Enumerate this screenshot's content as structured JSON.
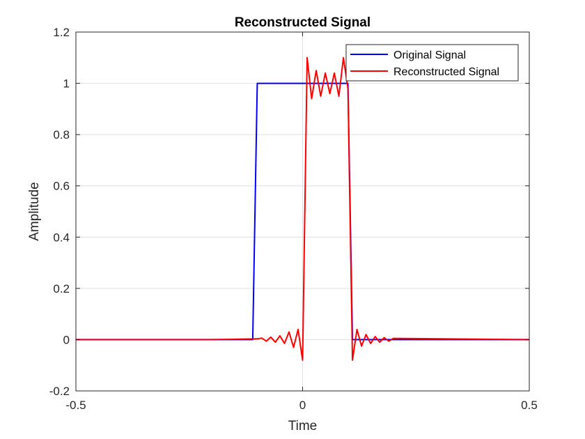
{
  "chart_data": {
    "type": "line",
    "title": "Reconstructed Signal",
    "xlabel": "Time",
    "ylabel": "Amplitude",
    "xlim": [
      -0.5,
      0.5
    ],
    "ylim": [
      -0.2,
      1.2
    ],
    "xticks": [
      -0.5,
      0,
      0.5
    ],
    "xtick_labels": [
      "-0.5",
      "0",
      "0.5"
    ],
    "yticks": [
      -0.2,
      0,
      0.2,
      0.4,
      0.6,
      0.8,
      1,
      1.2
    ],
    "ytick_labels": [
      "-0.2",
      "0",
      "0.2",
      "0.4",
      "0.6",
      "0.8",
      "1",
      "1.2"
    ],
    "grid": true,
    "legend_position": "top-right",
    "series": [
      {
        "name": "Original Signal",
        "color": "#0000ff",
        "x": [
          -0.5,
          -0.2,
          -0.11,
          -0.1,
          0.1,
          0.11,
          0.2,
          0.5
        ],
        "y": [
          0,
          0,
          0,
          1,
          1,
          0,
          0,
          0
        ]
      },
      {
        "name": "Reconstructed Signal",
        "color": "#ff0000",
        "x": [
          -0.5,
          -0.2,
          -0.1,
          -0.09,
          -0.08,
          -0.07,
          -0.06,
          -0.05,
          -0.04,
          -0.03,
          -0.02,
          -0.01,
          0.0,
          0.01,
          0.02,
          0.03,
          0.04,
          0.05,
          0.06,
          0.07,
          0.08,
          0.09,
          0.1,
          0.11,
          0.12,
          0.13,
          0.14,
          0.15,
          0.16,
          0.17,
          0.18,
          0.19,
          0.2,
          0.5
        ],
        "y": [
          0,
          0,
          0.003,
          0.006,
          -0.006,
          0.01,
          -0.01,
          0.015,
          -0.015,
          0.03,
          -0.03,
          0.04,
          -0.08,
          1.1,
          0.94,
          1.05,
          0.95,
          1.04,
          0.96,
          1.04,
          0.95,
          1.1,
          0.98,
          -0.08,
          0.04,
          -0.025,
          0.02,
          -0.015,
          0.012,
          -0.01,
          0.008,
          -0.006,
          0.005,
          0
        ]
      }
    ]
  }
}
